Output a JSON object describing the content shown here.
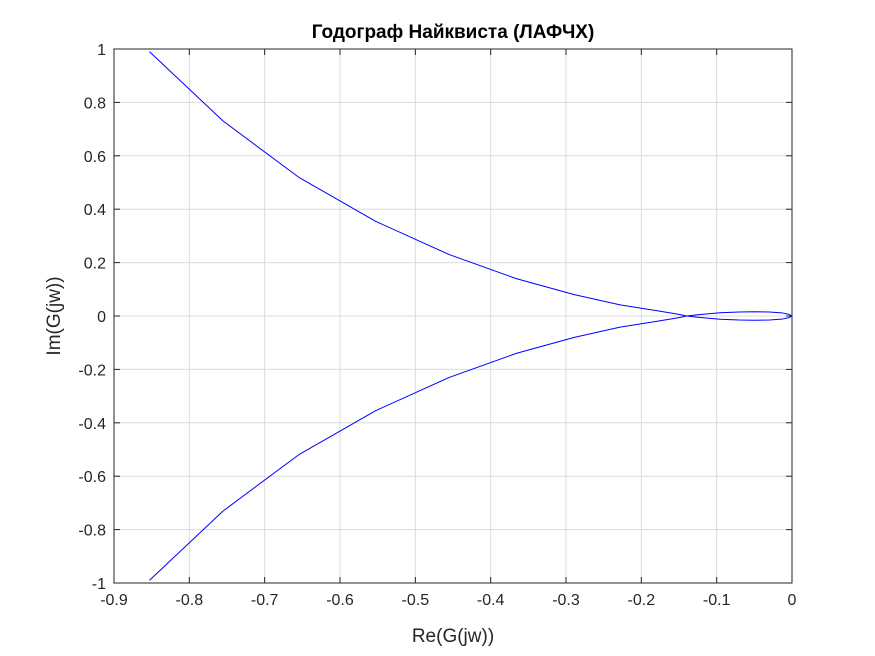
{
  "chart_data": {
    "type": "line",
    "title": "Годограф Найквиста (ЛАФЧХ)",
    "xlabel": "Re(G(jw))",
    "ylabel": "Im(G(jw))",
    "xlim": [
      -0.9,
      0
    ],
    "ylim": [
      -1,
      1
    ],
    "xticks": [
      -0.9,
      -0.8,
      -0.7,
      -0.6,
      -0.5,
      -0.4,
      -0.3,
      -0.2,
      -0.1,
      0
    ],
    "yticks": [
      -1,
      -0.8,
      -0.6,
      -0.4,
      -0.2,
      0,
      0.2,
      0.4,
      0.6,
      0.8,
      1
    ],
    "xtick_labels": [
      "-0.9",
      "-0.8",
      "-0.7",
      "-0.6",
      "-0.5",
      "-0.4",
      "-0.3",
      "-0.2",
      "-0.1",
      "0"
    ],
    "ytick_labels": [
      "-1",
      "-0.8",
      "-0.6",
      "-0.4",
      "-0.2",
      "0",
      "0.2",
      "0.4",
      "0.6",
      "0.8",
      "1"
    ],
    "grid": true,
    "legend": "none",
    "series": [
      {
        "color": "#0000ff",
        "x": [
          -0.853,
          -0.755,
          -0.655,
          -0.553,
          -0.455,
          -0.366,
          -0.289,
          -0.229,
          -0.18,
          -0.15,
          -0.14,
          -0.12,
          -0.095,
          -0.07,
          -0.05,
          -0.03,
          -0.012,
          -0.004,
          0
        ],
        "y": [
          0.99,
          0.73,
          0.52,
          0.355,
          0.23,
          0.14,
          0.08,
          0.042,
          0.02,
          0.006,
          0.0,
          -0.006,
          -0.012,
          -0.015,
          -0.016,
          -0.015,
          -0.011,
          -0.006,
          0
        ]
      },
      {
        "color": "#0000ff",
        "x": [
          0,
          -0.004,
          -0.012,
          -0.03,
          -0.05,
          -0.07,
          -0.095,
          -0.12,
          -0.14,
          -0.15,
          -0.18,
          -0.229,
          -0.289,
          -0.366,
          -0.455,
          -0.553,
          -0.655,
          -0.755,
          -0.853
        ],
        "y": [
          0,
          0.006,
          0.011,
          0.015,
          0.016,
          0.015,
          0.012,
          0.006,
          0.0,
          -0.006,
          -0.02,
          -0.042,
          -0.08,
          -0.14,
          -0.23,
          -0.355,
          -0.52,
          -0.73,
          -0.99
        ]
      }
    ]
  }
}
